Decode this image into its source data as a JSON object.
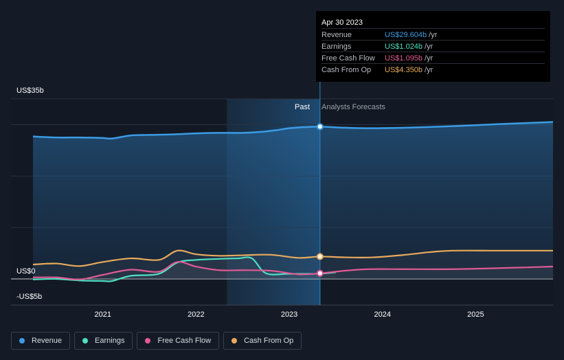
{
  "tooltip": {
    "date": "Apr 30 2023",
    "rows": [
      {
        "label": "Revenue",
        "value": "US$29.604b",
        "unit": "/yr",
        "color": "#3b9de6"
      },
      {
        "label": "Earnings",
        "value": "US$1.024b",
        "unit": "/yr",
        "color": "#4fe0c4"
      },
      {
        "label": "Free Cash Flow",
        "value": "US$1.095b",
        "unit": "/yr",
        "color": "#e05a95"
      },
      {
        "label": "Cash From Op",
        "value": "US$4.350b",
        "unit": "/yr",
        "color": "#e9ab5c"
      }
    ]
  },
  "regions": {
    "past": "Past",
    "forecast": "Analysts Forecasts"
  },
  "legend": [
    {
      "label": "Revenue",
      "color": "#3b9de6"
    },
    {
      "label": "Earnings",
      "color": "#4fe0c4"
    },
    {
      "label": "Free Cash Flow",
      "color": "#e05a95"
    },
    {
      "label": "Cash From Op",
      "color": "#e9ab5c"
    }
  ],
  "chart_data": {
    "type": "line",
    "ylim": [
      -5,
      35
    ],
    "ytick_labels": {
      "top": "US$35b",
      "zero": "US$0",
      "bottom": "-US$5b"
    },
    "xticks": [
      {
        "label": "2021",
        "x": 2021.0
      },
      {
        "label": "2022",
        "x": 2022.0
      },
      {
        "label": "2023",
        "x": 2023.0
      },
      {
        "label": "2024",
        "x": 2024.0
      },
      {
        "label": "2025",
        "x": 2025.0
      }
    ],
    "past_start": 2022.33,
    "past_end": 2023.33,
    "marker_x": 2023.33,
    "series": [
      {
        "name": "Revenue",
        "color": "#3b9de6",
        "fill": true,
        "points": [
          [
            2020.25,
            27.7
          ],
          [
            2020.5,
            27.5
          ],
          [
            2020.75,
            27.5
          ],
          [
            2021.0,
            27.4
          ],
          [
            2021.1,
            27.3
          ],
          [
            2021.3,
            27.9
          ],
          [
            2021.5,
            28.0
          ],
          [
            2021.75,
            28.1
          ],
          [
            2022.0,
            28.3
          ],
          [
            2022.25,
            28.4
          ],
          [
            2022.5,
            28.4
          ],
          [
            2022.7,
            28.6
          ],
          [
            2022.85,
            28.9
          ],
          [
            2023.0,
            29.3
          ],
          [
            2023.15,
            29.5
          ],
          [
            2023.33,
            29.604
          ],
          [
            2023.6,
            29.4
          ],
          [
            2023.85,
            29.3
          ],
          [
            2024.25,
            29.4
          ],
          [
            2024.75,
            29.7
          ],
          [
            2025.25,
            30.1
          ],
          [
            2025.83,
            30.5
          ]
        ]
      },
      {
        "name": "Cash From Op",
        "color": "#e9ab5c",
        "fill": false,
        "points": [
          [
            2020.25,
            2.8
          ],
          [
            2020.5,
            3.0
          ],
          [
            2020.75,
            2.5
          ],
          [
            2021.0,
            3.3
          ],
          [
            2021.3,
            4.0
          ],
          [
            2021.6,
            3.7
          ],
          [
            2021.8,
            5.5
          ],
          [
            2022.0,
            4.8
          ],
          [
            2022.25,
            4.5
          ],
          [
            2022.5,
            4.6
          ],
          [
            2022.8,
            4.7
          ],
          [
            2023.1,
            4.1
          ],
          [
            2023.33,
            4.35
          ],
          [
            2023.6,
            4.2
          ],
          [
            2023.9,
            4.2
          ],
          [
            2024.25,
            4.7
          ],
          [
            2024.5,
            5.2
          ],
          [
            2024.75,
            5.5
          ],
          [
            2025.25,
            5.5
          ],
          [
            2025.83,
            5.5
          ]
        ]
      },
      {
        "name": "Earnings",
        "color": "#4fe0c4",
        "fill": false,
        "points": [
          [
            2020.25,
            -0.1
          ],
          [
            2020.5,
            0.0
          ],
          [
            2020.75,
            -0.3
          ],
          [
            2021.0,
            -0.4
          ],
          [
            2021.1,
            -0.4
          ],
          [
            2021.3,
            0.6
          ],
          [
            2021.6,
            1.0
          ],
          [
            2021.8,
            3.2
          ],
          [
            2022.0,
            3.7
          ],
          [
            2022.25,
            3.9
          ],
          [
            2022.45,
            4.0
          ],
          [
            2022.6,
            4.0
          ],
          [
            2022.75,
            1.1
          ],
          [
            2023.0,
            1.0
          ],
          [
            2023.33,
            1.024
          ],
          [
            2023.5,
            1.3
          ]
        ]
      },
      {
        "name": "Free Cash Flow",
        "color": "#e05a95",
        "fill": false,
        "points": [
          [
            2020.25,
            0.3
          ],
          [
            2020.5,
            0.3
          ],
          [
            2020.75,
            -0.1
          ],
          [
            2021.0,
            0.8
          ],
          [
            2021.3,
            1.8
          ],
          [
            2021.6,
            1.4
          ],
          [
            2021.8,
            3.3
          ],
          [
            2022.0,
            2.4
          ],
          [
            2022.25,
            1.7
          ],
          [
            2022.5,
            1.7
          ],
          [
            2022.8,
            1.6
          ],
          [
            2023.1,
            0.9
          ],
          [
            2023.33,
            1.095
          ],
          [
            2023.6,
            1.6
          ],
          [
            2023.85,
            1.9
          ],
          [
            2024.25,
            1.9
          ],
          [
            2024.75,
            1.9
          ],
          [
            2025.25,
            2.1
          ],
          [
            2025.83,
            2.4
          ]
        ]
      }
    ]
  }
}
